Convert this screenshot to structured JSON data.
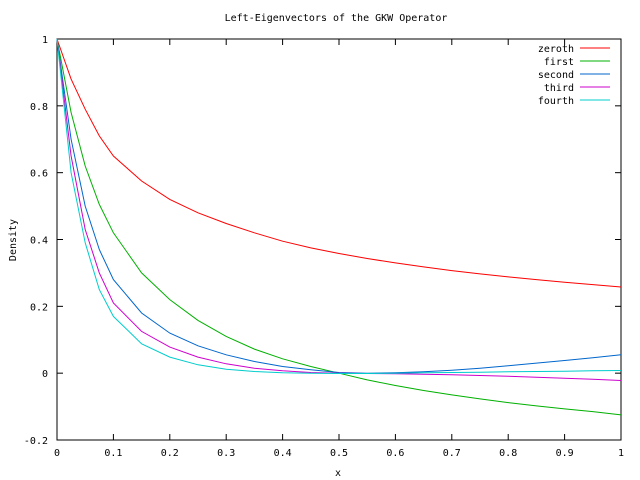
{
  "chart_data": {
    "type": "line",
    "title": "Left-Eigenvectors of the GKW Operator",
    "xlabel": "x",
    "ylabel": "Density",
    "xlim": [
      0,
      1
    ],
    "ylim": [
      -0.2,
      1
    ],
    "grid": false,
    "legend_position": "top-right",
    "x_ticks": [
      0,
      0.1,
      0.2,
      0.3,
      0.4,
      0.5,
      0.6,
      0.7,
      0.8,
      0.9,
      1
    ],
    "x_tick_labels": [
      "0",
      "0.1",
      "0.2",
      "0.3",
      "0.4",
      "0.5",
      "0.6",
      "0.7",
      "0.8",
      "0.9",
      "1"
    ],
    "y_ticks": [
      -0.2,
      0,
      0.2,
      0.4,
      0.6,
      0.8,
      1
    ],
    "y_tick_labels": [
      "-0.2",
      "0",
      "0.2",
      "0.4",
      "0.6",
      "0.8",
      "1"
    ],
    "x": [
      0,
      0.025,
      0.05,
      0.075,
      0.1,
      0.15,
      0.2,
      0.25,
      0.3,
      0.35,
      0.4,
      0.45,
      0.5,
      0.55,
      0.6,
      0.65,
      0.7,
      0.75,
      0.8,
      0.85,
      0.9,
      0.95,
      1
    ],
    "series": [
      {
        "name": "zeroth",
        "color": "#ff0000",
        "values": [
          1.0,
          0.88,
          0.79,
          0.71,
          0.65,
          0.575,
          0.52,
          0.48,
          0.448,
          0.42,
          0.395,
          0.375,
          0.358,
          0.343,
          0.33,
          0.318,
          0.307,
          0.297,
          0.288,
          0.28,
          0.272,
          0.265,
          0.258
        ]
      },
      {
        "name": "first",
        "color": "#00b000",
        "values": [
          1.0,
          0.78,
          0.62,
          0.505,
          0.42,
          0.3,
          0.22,
          0.158,
          0.11,
          0.072,
          0.043,
          0.02,
          0.0,
          -0.02,
          -0.037,
          -0.052,
          -0.065,
          -0.077,
          -0.088,
          -0.098,
          -0.107,
          -0.115,
          -0.125
        ]
      },
      {
        "name": "second",
        "color": "#0066cc",
        "values": [
          1.0,
          0.7,
          0.5,
          0.37,
          0.28,
          0.18,
          0.12,
          0.082,
          0.055,
          0.035,
          0.02,
          0.01,
          0.002,
          0.0,
          0.001,
          0.004,
          0.009,
          0.015,
          0.022,
          0.03,
          0.038,
          0.046,
          0.055
        ]
      },
      {
        "name": "third",
        "color": "#cc00cc",
        "values": [
          1.0,
          0.65,
          0.43,
          0.3,
          0.21,
          0.125,
          0.078,
          0.048,
          0.028,
          0.015,
          0.007,
          0.002,
          0.0,
          -0.001,
          -0.002,
          -0.003,
          -0.005,
          -0.007,
          -0.009,
          -0.012,
          -0.015,
          -0.018,
          -0.022
        ]
      },
      {
        "name": "fourth",
        "color": "#00cccc",
        "values": [
          1.0,
          0.6,
          0.39,
          0.25,
          0.17,
          0.088,
          0.048,
          0.025,
          0.012,
          0.005,
          0.001,
          0.0,
          -0.001,
          -0.001,
          0.0,
          0.001,
          0.002,
          0.003,
          0.004,
          0.005,
          0.006,
          0.007,
          0.008
        ]
      }
    ]
  }
}
